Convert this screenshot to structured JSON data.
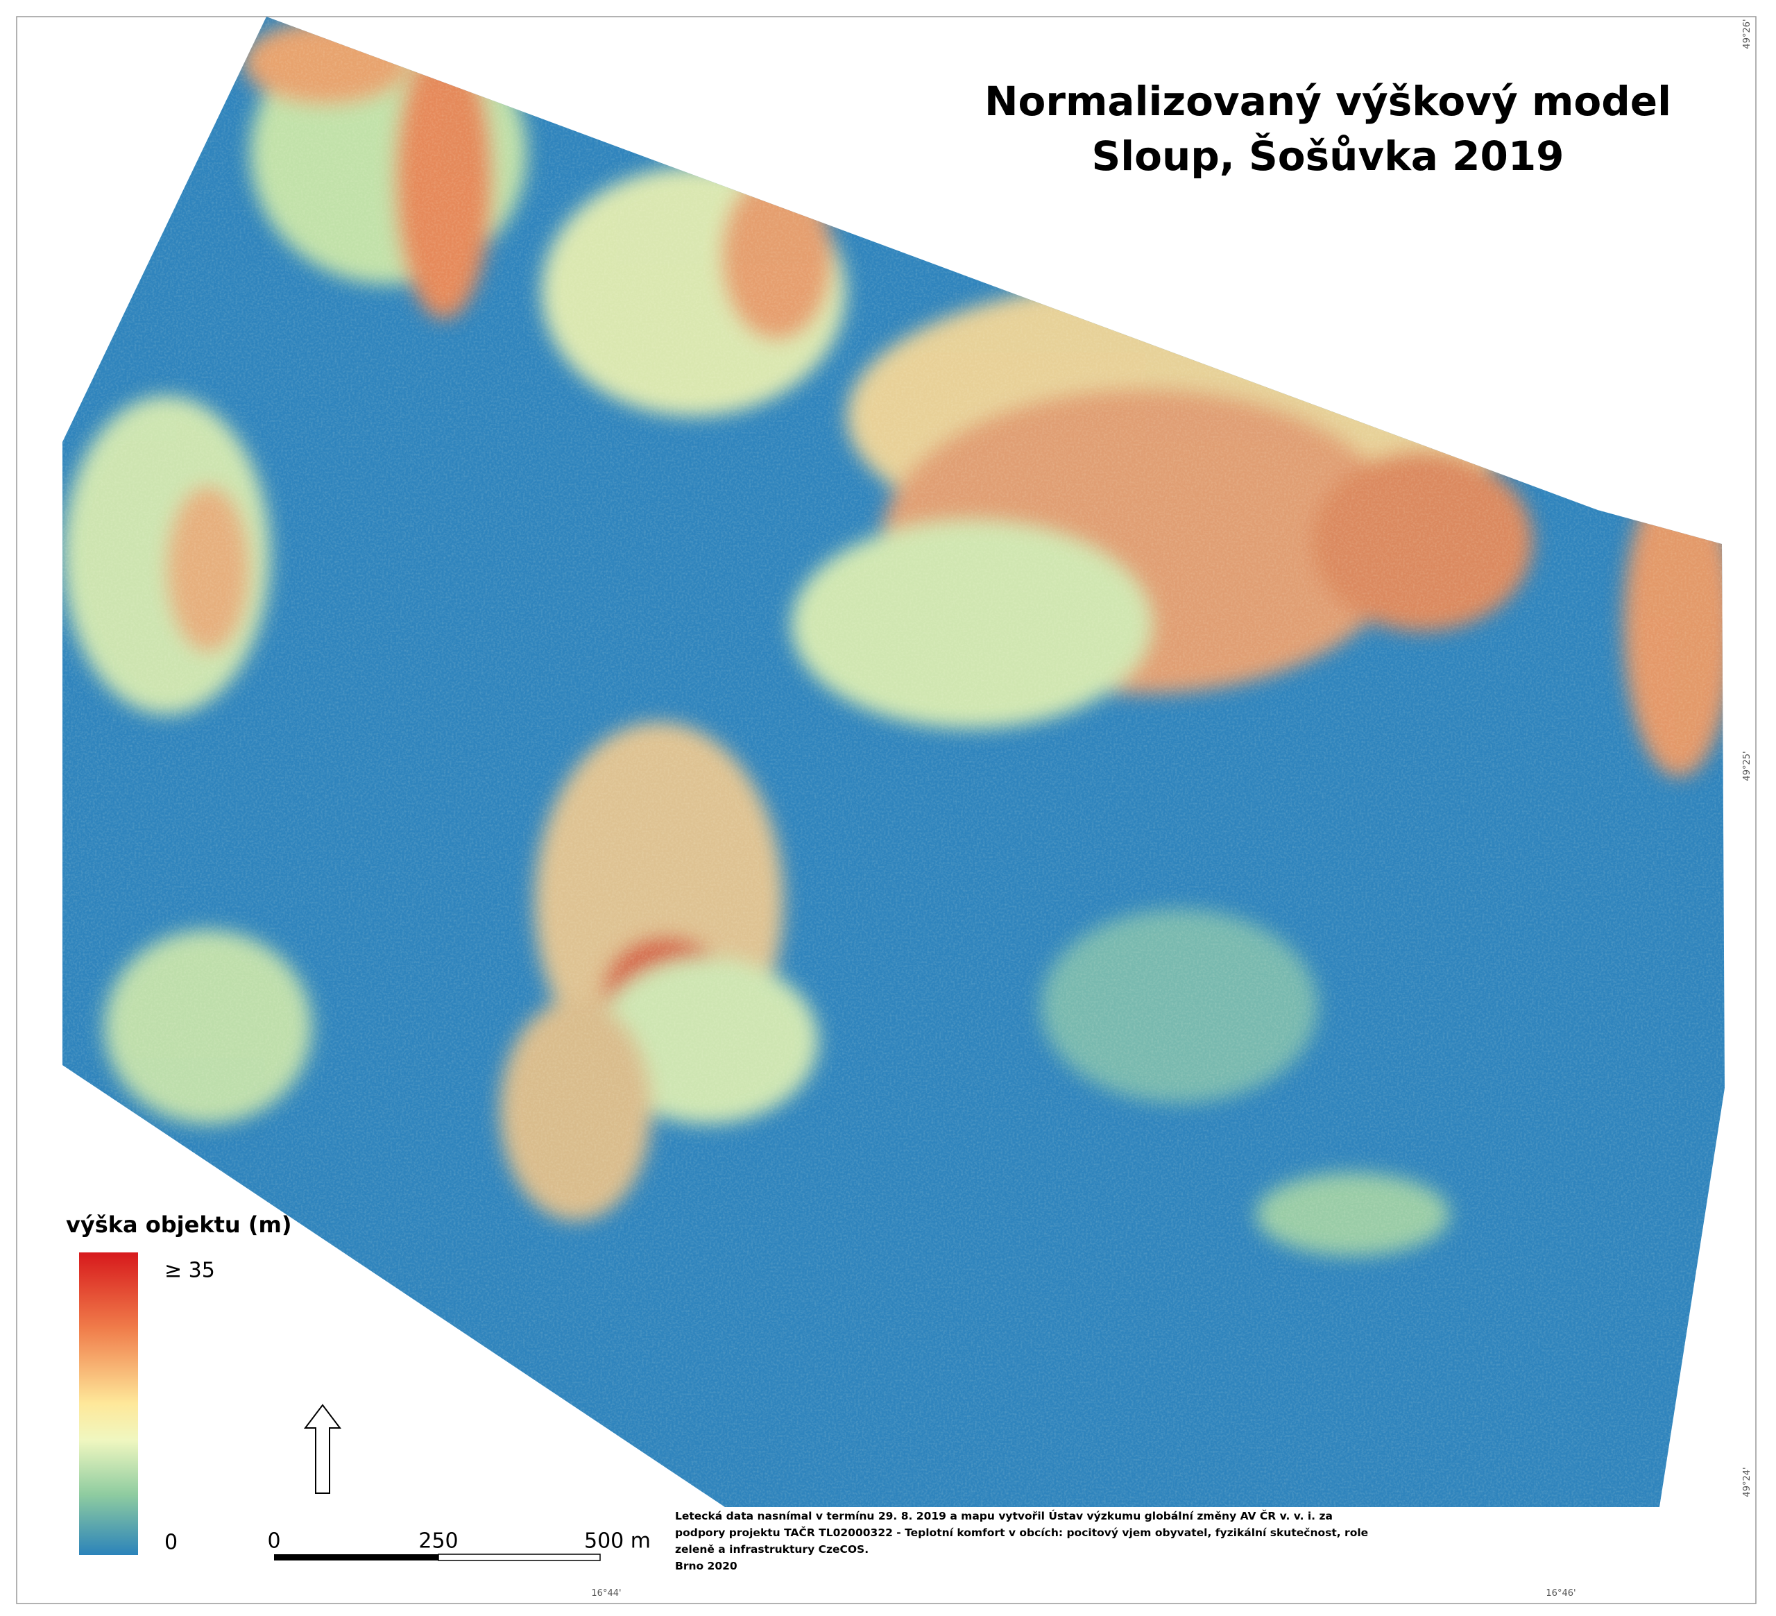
{
  "title": [
    "Normalizovaný výškový model",
    "Sloup, Šošůvka 2019"
  ],
  "legend": {
    "title": "výška objektu (m)",
    "max_label": "≥ 35",
    "min_label": "0"
  },
  "scale_bar": [
    "0",
    "250",
    "500 m"
  ],
  "credits": [
    "Letecká data nasnímal v termínu 29. 8. 2019  a mapu vytvořil Ústav výzkumu globální změny AV ČR v. v. i. za",
    "podpory projektu TAČR TL02000322 - Teplotní komfort v obcích: pocitový vjem obyvatel, fyzikální skutečnost, role",
    "zeleně a infrastruktury CzeCOS.",
    "Brno 2020"
  ],
  "coordinates": {
    "lat": [
      "49°26'",
      "49°25'",
      "49°24'"
    ],
    "lon": [
      "16°44'",
      "16°46'"
    ]
  }
}
